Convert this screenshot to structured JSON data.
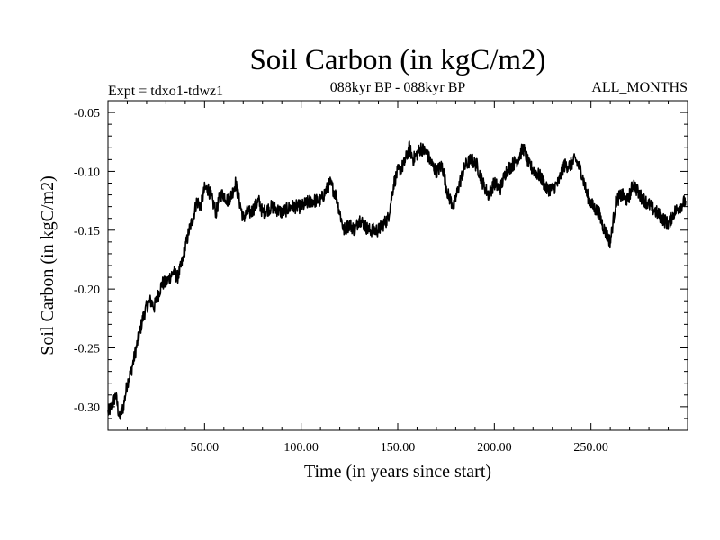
{
  "chart_data": {
    "type": "line",
    "title": "Soil Carbon (in kgC/m2)",
    "experiment": "Expt = tdxo1-tdwz1",
    "period": "088kyr BP - 088kyr BP",
    "season": "ALL_MONTHS",
    "xlabel": "Time (in years since start)",
    "ylabel": "Soil Carbon (in kgC/m2)",
    "xlim": [
      0,
      300
    ],
    "ylim": [
      -0.32,
      -0.04
    ],
    "x_ticks": [
      50,
      100,
      150,
      200,
      250
    ],
    "x_tick_labels": [
      "50.00",
      "100.00",
      "150.00",
      "200.00",
      "250.00"
    ],
    "y_ticks": [
      -0.05,
      -0.1,
      -0.15,
      -0.2,
      -0.25,
      -0.3
    ],
    "y_tick_labels": [
      "-0.05",
      "-0.10",
      "-0.15",
      "-0.20",
      "-0.25",
      "-0.30"
    ],
    "grid": false,
    "line_color": "#000000",
    "series": [
      {
        "x": [
          0,
          2,
          4,
          6,
          8,
          10,
          12,
          14,
          16,
          18,
          20,
          22,
          24,
          26,
          28,
          30,
          32,
          34,
          36,
          38,
          40,
          42,
          44,
          46,
          48,
          50,
          52,
          54,
          56,
          58,
          60,
          62,
          64,
          66,
          68,
          70,
          72,
          74,
          76,
          78,
          80,
          85,
          90,
          95,
          100,
          105,
          110,
          115,
          118,
          120,
          122,
          125,
          128,
          130,
          135,
          140,
          145,
          148,
          150,
          153,
          156,
          158,
          160,
          162,
          165,
          168,
          170,
          173,
          176,
          179,
          182,
          185,
          188,
          191,
          194,
          197,
          200,
          203,
          206,
          209,
          212,
          215,
          218,
          221,
          224,
          227,
          230,
          233,
          236,
          239,
          242,
          245,
          248,
          251,
          254,
          257,
          260,
          263,
          266,
          269,
          272,
          275,
          278,
          281,
          284,
          287,
          290,
          293,
          296,
          299
        ],
        "values": [
          -0.305,
          -0.3,
          -0.29,
          -0.31,
          -0.3,
          -0.28,
          -0.27,
          -0.255,
          -0.24,
          -0.225,
          -0.215,
          -0.21,
          -0.215,
          -0.205,
          -0.195,
          -0.195,
          -0.19,
          -0.185,
          -0.19,
          -0.18,
          -0.165,
          -0.15,
          -0.14,
          -0.125,
          -0.13,
          -0.115,
          -0.115,
          -0.125,
          -0.135,
          -0.12,
          -0.12,
          -0.125,
          -0.12,
          -0.11,
          -0.125,
          -0.14,
          -0.135,
          -0.135,
          -0.13,
          -0.125,
          -0.135,
          -0.13,
          -0.135,
          -0.13,
          -0.13,
          -0.125,
          -0.125,
          -0.11,
          -0.12,
          -0.135,
          -0.15,
          -0.145,
          -0.15,
          -0.14,
          -0.15,
          -0.15,
          -0.14,
          -0.11,
          -0.1,
          -0.095,
          -0.08,
          -0.09,
          -0.085,
          -0.08,
          -0.085,
          -0.095,
          -0.1,
          -0.095,
          -0.12,
          -0.13,
          -0.11,
          -0.095,
          -0.09,
          -0.095,
          -0.11,
          -0.12,
          -0.11,
          -0.115,
          -0.1,
          -0.095,
          -0.09,
          -0.08,
          -0.095,
          -0.1,
          -0.105,
          -0.115,
          -0.115,
          -0.11,
          -0.095,
          -0.095,
          -0.09,
          -0.1,
          -0.12,
          -0.13,
          -0.135,
          -0.15,
          -0.16,
          -0.125,
          -0.12,
          -0.125,
          -0.11,
          -0.12,
          -0.125,
          -0.13,
          -0.135,
          -0.14,
          -0.145,
          -0.135,
          -0.13,
          -0.125
        ]
      }
    ]
  }
}
